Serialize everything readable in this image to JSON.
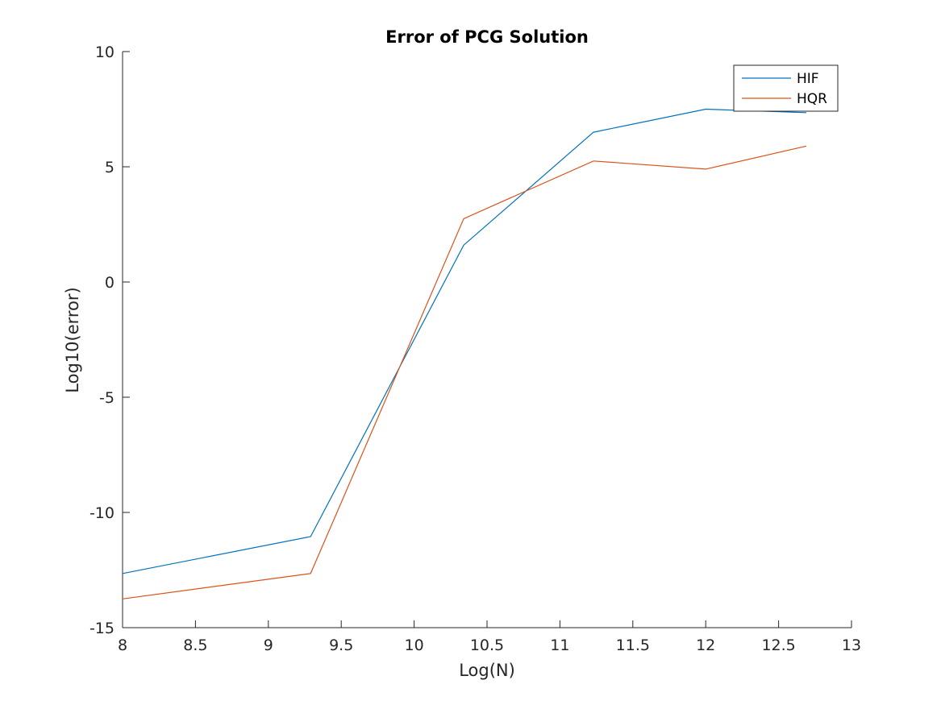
{
  "chart_data": {
    "type": "line",
    "title": "Error of PCG Solution",
    "xlabel": "Log(N)",
    "ylabel": "Log10(error)",
    "xlim": [
      8,
      13
    ],
    "ylim": [
      -15,
      10
    ],
    "xticks": [
      8,
      8.5,
      9,
      9.5,
      10,
      10.5,
      11,
      11.5,
      12,
      12.5,
      13
    ],
    "xtick_labels": [
      "8",
      "8.5",
      "9",
      "9.5",
      "10",
      "10.5",
      "11",
      "11.5",
      "12",
      "12.5",
      "13"
    ],
    "yticks": [
      -15,
      -10,
      -5,
      0,
      5,
      10
    ],
    "ytick_labels": [
      "-15",
      "-10",
      "-5",
      "0",
      "5",
      "10"
    ],
    "grid": false,
    "legend_position": "top-right",
    "series": [
      {
        "name": "HIF",
        "color": "#0072BD",
        "x": [
          8.0,
          9.29,
          10.34,
          11.23,
          12.0,
          12.69
        ],
        "y": [
          -12.65,
          -11.05,
          1.6,
          6.5,
          7.5,
          7.35
        ]
      },
      {
        "name": "HQR",
        "color": "#D95319",
        "x": [
          8.0,
          9.29,
          10.34,
          11.23,
          12.0,
          12.69
        ],
        "y": [
          -13.75,
          -12.65,
          2.75,
          5.25,
          4.9,
          5.9
        ]
      }
    ]
  }
}
